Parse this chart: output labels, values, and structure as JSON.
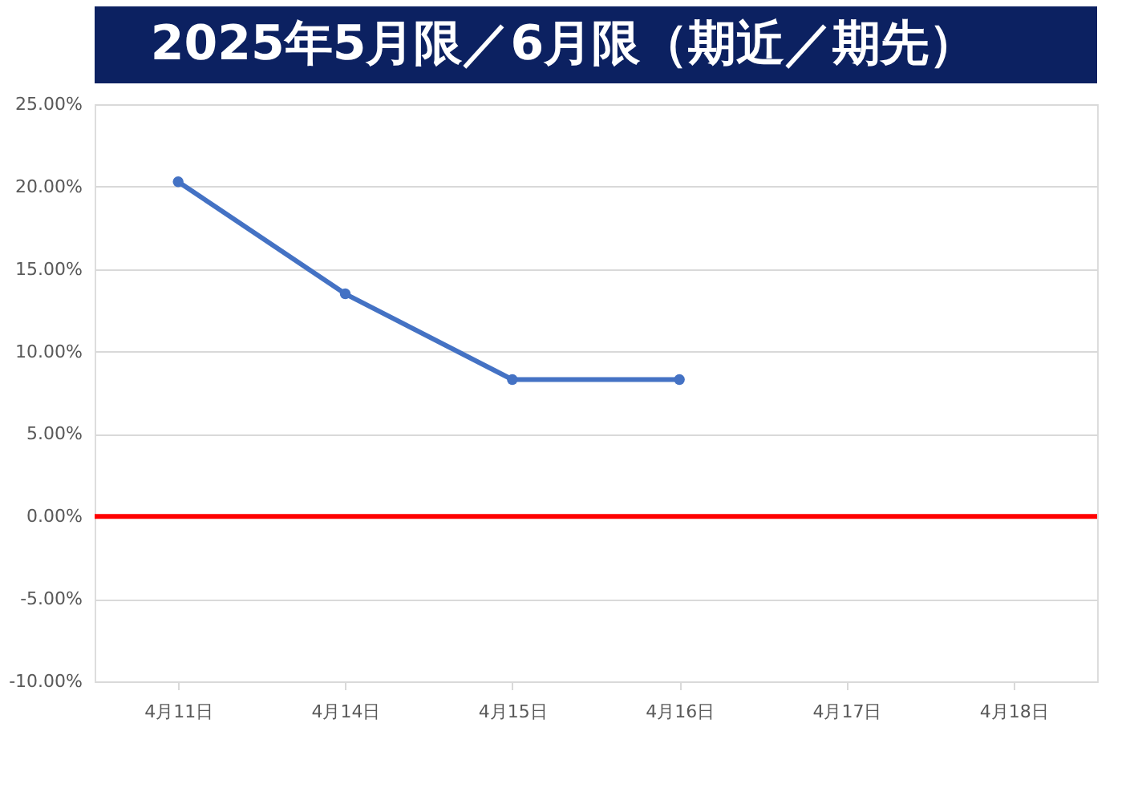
{
  "chart_data": {
    "type": "line",
    "title": "2025年5月限／6月限（期近／期先）",
    "categories": [
      "4月11日",
      "4月14日",
      "4月15日",
      "4月16日",
      "4月17日",
      "4月18日"
    ],
    "series": [
      {
        "color": "#4472c4",
        "values": [
          20.3,
          13.5,
          8.3,
          8.3,
          null,
          null
        ]
      }
    ],
    "ylim": [
      -10,
      25
    ],
    "yticks": [
      {
        "value": -10,
        "label": "-10.00%"
      },
      {
        "value": -5,
        "label": "-5.00%"
      },
      {
        "value": 0,
        "label": "0.00%"
      },
      {
        "value": 5,
        "label": "5.00%"
      },
      {
        "value": 10,
        "label": "10.00%"
      },
      {
        "value": 15,
        "label": "15.00%"
      },
      {
        "value": 20,
        "label": "20.00%"
      },
      {
        "value": 25,
        "label": "25.00%"
      }
    ],
    "ref_lines": [
      {
        "axis": "y",
        "value": 0,
        "color": "#ff0000"
      }
    ],
    "grid": "y",
    "marker": "circle",
    "line_style": "solid"
  }
}
